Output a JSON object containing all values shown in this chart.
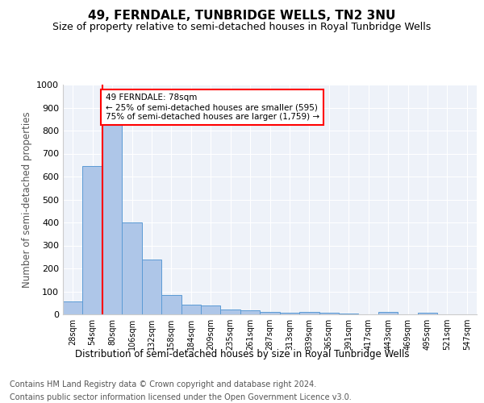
{
  "title": "49, FERNDALE, TUNBRIDGE WELLS, TN2 3NU",
  "subtitle": "Size of property relative to semi-detached houses in Royal Tunbridge Wells",
  "xlabel_bottom": "Distribution of semi-detached houses by size in Royal Tunbridge Wells",
  "ylabel": "Number of semi-detached properties",
  "footer1": "Contains HM Land Registry data © Crown copyright and database right 2024.",
  "footer2": "Contains public sector information licensed under the Open Government Licence v3.0.",
  "categories": [
    "28sqm",
    "54sqm",
    "80sqm",
    "106sqm",
    "132sqm",
    "158sqm",
    "184sqm",
    "209sqm",
    "235sqm",
    "261sqm",
    "287sqm",
    "313sqm",
    "339sqm",
    "365sqm",
    "391sqm",
    "417sqm",
    "443sqm",
    "469sqm",
    "495sqm",
    "521sqm",
    "547sqm"
  ],
  "values": [
    55,
    645,
    825,
    400,
    240,
    85,
    42,
    38,
    22,
    16,
    10,
    8,
    11,
    8,
    3,
    0,
    10,
    0,
    8,
    0,
    0
  ],
  "bar_color": "#aec6e8",
  "bar_edge_color": "#5b9bd5",
  "property_label": "49 FERNDALE: 78sqm",
  "pct_smaller": 25,
  "count_smaller": 595,
  "pct_larger": 75,
  "count_larger": 1759,
  "vline_x_index": 2,
  "vline_color": "red",
  "ylim": [
    0,
    1000
  ],
  "yticks": [
    0,
    100,
    200,
    300,
    400,
    500,
    600,
    700,
    800,
    900,
    1000
  ],
  "background_color": "#eef2f9",
  "grid_color": "#ffffff",
  "title_fontsize": 11,
  "subtitle_fontsize": 9,
  "axis_fontsize": 8.5,
  "tick_fontsize": 8,
  "footer_fontsize": 7
}
